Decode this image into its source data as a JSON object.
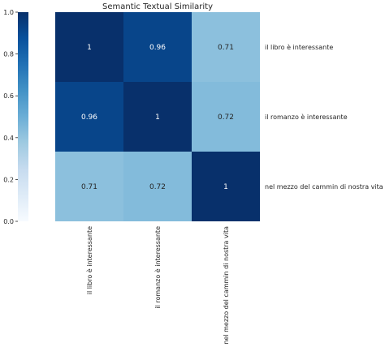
{
  "chart_data": {
    "type": "heatmap",
    "title": "Semantic Textual Similarity",
    "row_labels": [
      "il libro è interessante",
      "il romanzo è interessante",
      "nel mezzo del cammin di nostra vita"
    ],
    "col_labels": [
      "il libro è interessante",
      "il romanzo è interessante",
      "nel mezzo del cammin di nostra vita"
    ],
    "values": [
      [
        1,
        0.96,
        0.71
      ],
      [
        0.96,
        1,
        0.72
      ],
      [
        0.71,
        0.72,
        1
      ]
    ],
    "value_labels": [
      [
        "1",
        "0.96",
        "0.71"
      ],
      [
        "0.96",
        "1",
        "0.72"
      ],
      [
        "0.71",
        "0.72",
        "1"
      ]
    ],
    "colormap": "Blues",
    "colorbar": {
      "range": [
        0,
        1
      ],
      "ticks": [
        0.0,
        0.2,
        0.4,
        0.6,
        0.8,
        1.0
      ],
      "tick_labels": [
        "0.0",
        "0.2",
        "0.4",
        "0.6",
        "0.8",
        "1.0"
      ],
      "placement": "left"
    },
    "row_label_side": "right",
    "col_label_rotation": "vertical"
  }
}
